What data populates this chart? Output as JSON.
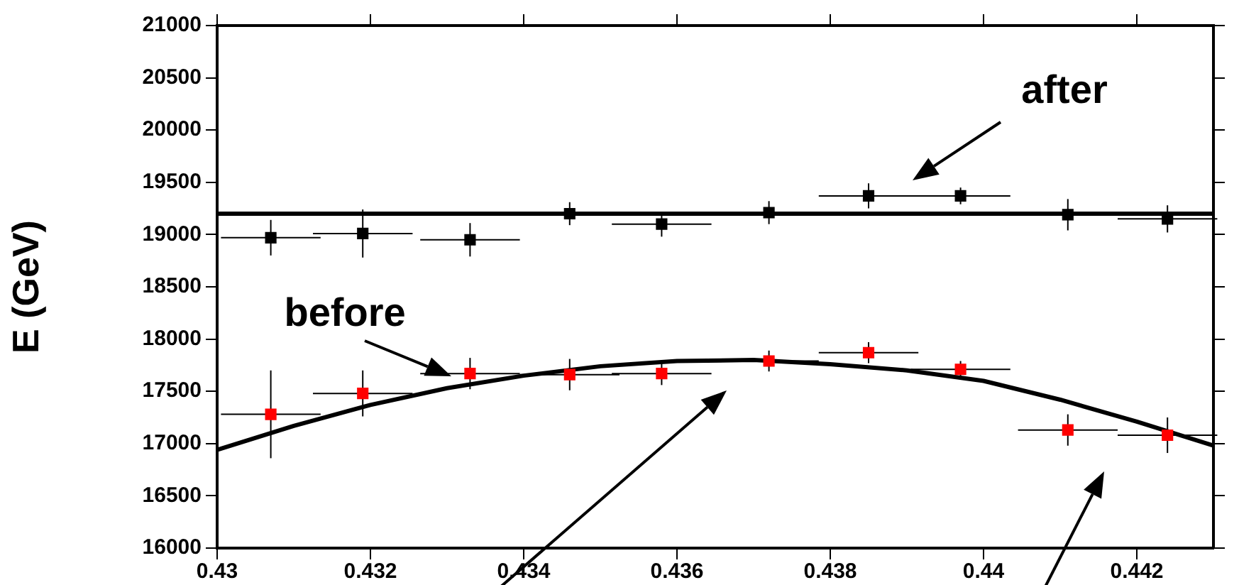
{
  "chart_data": {
    "type": "scatter",
    "ylabel": "E (GeV)",
    "xlim": [
      0.43,
      0.443
    ],
    "xticks": [
      {
        "value": 0.43,
        "label": "0.43"
      },
      {
        "value": 0.432,
        "label": "0.432"
      },
      {
        "value": 0.434,
        "label": "0.434"
      },
      {
        "value": 0.436,
        "label": "0.436"
      },
      {
        "value": 0.438,
        "label": "0.438"
      },
      {
        "value": 0.44,
        "label": "0.44"
      },
      {
        "value": 0.442,
        "label": "0.442"
      }
    ],
    "ylim": [
      16000,
      21000
    ],
    "yticks": [
      16000,
      16500,
      17000,
      17500,
      18000,
      18500,
      19000,
      19500,
      20000,
      20500,
      21000
    ],
    "grid": false,
    "legend": false,
    "series": [
      {
        "marker": "square",
        "color": "#000000",
        "x": [
          0.4307,
          0.4319,
          0.4333,
          0.4346,
          0.4358,
          0.4372,
          0.4385,
          0.4397,
          0.4411,
          0.4424
        ],
        "values": [
          18970,
          19010,
          18950,
          19200,
          19100,
          19210,
          19370,
          19370,
          19190,
          19150
        ],
        "errors": [
          170,
          230,
          160,
          110,
          120,
          110,
          120,
          80,
          150,
          130
        ],
        "xerrors": [
          0.00065,
          0.00065,
          0.00065,
          0.00065,
          0.00065,
          0.00065,
          0.00065,
          0.00065,
          0.00065,
          0.00065
        ]
      },
      {
        "marker": "square",
        "color": "#ff0000",
        "x": [
          0.4307,
          0.4319,
          0.4333,
          0.4346,
          0.4358,
          0.4372,
          0.4385,
          0.4397,
          0.4411,
          0.4424
        ],
        "values": [
          17280,
          17480,
          17670,
          17660,
          17670,
          17790,
          17870,
          17710,
          17130,
          17080
        ],
        "errors": [
          420,
          220,
          150,
          150,
          110,
          100,
          100,
          80,
          150,
          170
        ],
        "xerrors": [
          0.00065,
          0.00065,
          0.00065,
          0.00065,
          0.00065,
          0.00065,
          0.00065,
          0.00065,
          0.00065,
          0.00065
        ]
      },
      {
        "type": "line",
        "marker": "none",
        "color": "#000000",
        "x": [
          0.43,
          0.443
        ],
        "values": [
          19200,
          19200
        ]
      },
      {
        "type": "line",
        "marker": "none",
        "color": "#000000",
        "x": [
          0.43,
          0.431,
          0.432,
          0.433,
          0.434,
          0.435,
          0.436,
          0.437,
          0.438,
          0.439,
          0.44,
          0.441,
          0.442,
          0.443
        ],
        "values": [
          16940,
          17170,
          17370,
          17530,
          17650,
          17740,
          17790,
          17800,
          17760,
          17700,
          17600,
          17420,
          17210,
          16980
        ]
      }
    ],
    "annotations": [
      "after",
      "before"
    ]
  }
}
